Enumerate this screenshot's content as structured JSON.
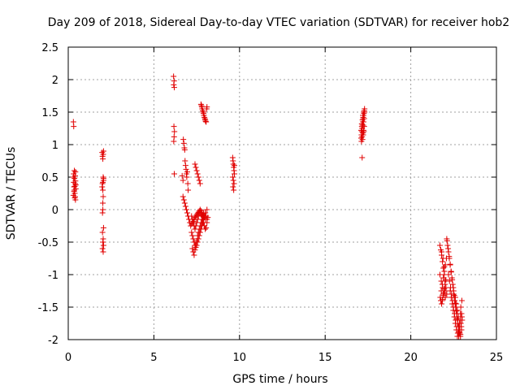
{
  "chart_data": {
    "type": "scatter",
    "title": "Day 209 of 2018, Sidereal Day-to-day VTEC variation (SDTVAR) for receiver hob2",
    "xlabel": "GPS time / hours",
    "ylabel": "SDTVAR / TECUs",
    "xlim": [
      0,
      25
    ],
    "ylim": [
      -2,
      2.5
    ],
    "xticks": [
      0,
      5,
      10,
      15,
      20,
      25
    ],
    "xtick_labels": [
      "0",
      "5",
      "10",
      "15",
      "20",
      "25"
    ],
    "yticks": [
      -2,
      -1.5,
      -1,
      -0.5,
      0,
      0.5,
      1,
      1.5,
      2,
      2.5
    ],
    "ytick_labels": [
      "-2",
      "-1.5",
      "-1",
      "-0.5",
      "0",
      "0.5",
      "1",
      "1.5",
      "2",
      "2.5"
    ],
    "grid": true,
    "marker": "+",
    "color": "#e00000",
    "series": [
      {
        "name": "SDTVAR",
        "x": [
          0.3,
          0.32,
          0.3,
          0.32,
          0.34,
          0.36,
          0.38,
          0.4,
          0.42,
          0.32,
          0.36,
          0.4,
          0.44,
          0.3,
          0.34,
          0.38,
          0.42,
          0.36,
          0.4,
          0.44,
          0.38,
          0.42,
          1.98,
          2.0,
          2.02,
          2.04,
          2.06,
          2.0,
          2.02,
          2.04,
          1.98,
          2.02,
          2.06,
          2.0,
          2.04,
          2.02,
          2.06,
          2.0,
          2.04,
          2.02,
          2.06,
          2.0,
          2.04,
          2.02,
          2.06,
          6.15,
          6.18,
          6.16,
          6.19,
          6.17,
          6.2,
          6.18,
          6.16,
          6.19,
          6.65,
          6.7,
          6.72,
          6.75,
          6.78,
          6.8,
          6.82,
          6.85,
          6.88,
          6.9,
          6.92,
          6.95,
          6.98,
          7.0,
          6.7,
          6.75,
          6.8,
          6.85,
          6.9,
          6.95,
          7.0,
          7.05,
          7.1,
          7.15,
          7.2,
          7.25,
          7.3,
          7.35,
          7.4,
          7.45,
          7.5,
          7.55,
          7.6,
          7.65,
          7.7,
          7.75,
          7.8,
          7.85,
          7.9,
          7.95,
          8.0,
          8.05,
          8.1,
          7.2,
          7.25,
          7.3,
          7.35,
          7.4,
          7.45,
          7.5,
          7.55,
          7.6,
          7.65,
          7.7,
          7.75,
          7.8,
          7.85,
          7.9,
          7.95,
          8.0,
          8.05,
          8.1,
          8.15,
          7.25,
          7.3,
          7.35,
          7.4,
          7.45,
          7.5,
          7.55,
          7.6,
          7.65,
          7.7,
          7.75,
          7.8,
          7.85,
          7.9,
          8.0,
          8.1,
          7.2,
          7.25,
          7.3,
          7.35,
          7.4,
          7.45,
          7.5,
          7.55,
          7.6,
          7.65,
          7.7,
          7.75,
          7.8,
          7.85,
          7.9,
          7.95,
          8.0,
          7.4,
          7.45,
          7.5,
          7.55,
          7.6,
          7.65,
          7.7,
          7.75,
          7.78,
          7.8,
          7.82,
          7.85,
          7.88,
          7.9,
          7.92,
          7.95,
          7.98,
          8.0,
          8.02,
          8.05,
          8.08,
          8.1,
          9.6,
          9.62,
          9.64,
          9.66,
          9.68,
          9.7,
          9.6,
          9.64,
          9.68,
          9.62,
          9.66,
          9.7,
          17.1,
          17.12,
          17.14,
          17.16,
          17.18,
          17.2,
          17.22,
          17.24,
          17.26,
          17.28,
          17.3,
          17.12,
          17.16,
          17.2,
          17.24,
          17.28,
          17.14,
          17.18,
          17.22,
          17.26,
          17.3,
          17.1,
          17.14,
          17.18,
          17.22,
          17.26,
          17.2,
          17.24,
          17.28,
          17.16,
          17.22,
          21.7,
          21.75,
          21.8,
          21.85,
          21.9,
          21.95,
          22.0,
          22.05,
          22.1,
          21.72,
          21.78,
          21.84,
          21.9,
          21.96,
          22.02,
          22.08,
          21.75,
          21.8,
          21.85,
          21.9,
          21.95,
          22.0,
          22.05,
          21.7,
          21.78,
          21.86,
          21.94,
          22.02,
          21.8,
          21.88,
          21.96,
          21.84,
          21.92,
          22.0,
          22.1,
          22.15,
          22.2,
          22.25,
          22.3,
          22.35,
          22.4,
          22.45,
          22.5,
          22.55,
          22.6,
          22.65,
          22.7,
          22.75,
          22.8,
          22.85,
          22.9,
          22.95,
          23.0,
          22.12,
          22.18,
          22.24,
          22.3,
          22.36,
          22.42,
          22.48,
          22.54,
          22.6,
          22.66,
          22.72,
          22.78,
          22.84,
          22.9,
          22.96,
          22.2,
          22.26,
          22.32,
          22.38,
          22.44,
          22.5,
          22.56,
          22.62,
          22.68,
          22.74,
          22.8,
          22.86,
          22.92,
          22.98,
          22.3,
          22.36,
          22.42,
          22.48,
          22.54,
          22.6,
          22.66,
          22.72,
          22.78,
          22.84,
          22.9,
          22.96,
          22.5,
          22.56,
          22.62,
          22.68,
          22.74,
          22.8,
          22.86,
          22.92,
          22.98,
          22.6,
          22.66,
          22.72,
          22.78,
          22.84,
          22.9
        ],
        "y": [
          1.35,
          1.28,
          0.5,
          0.42,
          0.35,
          0.3,
          0.25,
          0.2,
          0.15,
          0.55,
          0.48,
          0.4,
          0.32,
          0.22,
          0.28,
          0.36,
          0.44,
          0.6,
          0.52,
          0.38,
          0.18,
          0.58,
          0.88,
          0.82,
          0.78,
          0.5,
          0.45,
          0.4,
          0.3,
          0.2,
          0.35,
          0.1,
          0.48,
          -0.05,
          0.85,
          0.0,
          -0.28,
          -0.35,
          -0.45,
          -0.5,
          -0.55,
          -0.6,
          -0.65,
          0.42,
          0.9,
          2.05,
          1.98,
          1.92,
          1.88,
          1.28,
          1.2,
          1.12,
          1.05,
          0.55,
          0.52,
          0.45,
          1.08,
          1.02,
          0.95,
          0.92,
          0.75,
          0.68,
          0.62,
          0.55,
          0.5,
          0.58,
          0.4,
          0.3,
          0.2,
          0.15,
          0.1,
          0.05,
          0.0,
          -0.05,
          -0.1,
          -0.15,
          -0.2,
          -0.25,
          -0.22,
          -0.2,
          -0.18,
          -0.15,
          -0.12,
          -0.1,
          -0.08,
          -0.06,
          -0.04,
          -0.02,
          -0.05,
          -0.08,
          -0.1,
          -0.15,
          -0.2,
          -0.25,
          -0.3,
          -0.28,
          -0.2,
          -0.35,
          -0.4,
          -0.45,
          -0.5,
          -0.55,
          -0.58,
          -0.55,
          -0.5,
          -0.45,
          -0.4,
          -0.35,
          -0.3,
          -0.25,
          -0.2,
          -0.15,
          -0.1,
          -0.05,
          -0.1,
          -0.15,
          -0.12,
          -0.6,
          -0.65,
          -0.7,
          -0.62,
          -0.55,
          -0.48,
          -0.4,
          -0.35,
          -0.3,
          -0.25,
          -0.2,
          -0.15,
          -0.1,
          -0.05,
          -0.05,
          0.0,
          -0.1,
          -0.15,
          -0.2,
          -0.25,
          -0.3,
          -0.25,
          -0.2,
          -0.15,
          -0.1,
          -0.05,
          0.0,
          -0.02,
          -0.05,
          -0.08,
          -0.1,
          -0.12,
          -0.15,
          0.7,
          0.65,
          0.6,
          0.55,
          0.5,
          0.45,
          0.4,
          1.62,
          1.6,
          1.58,
          1.55,
          1.52,
          1.5,
          1.48,
          1.45,
          1.42,
          1.4,
          1.38,
          1.36,
          1.35,
          1.55,
          1.58,
          0.8,
          0.75,
          0.7,
          0.65,
          0.6,
          0.55,
          0.5,
          0.45,
          0.4,
          0.35,
          0.3,
          0.68,
          1.1,
          1.15,
          1.2,
          1.25,
          1.3,
          1.35,
          1.4,
          1.45,
          1.5,
          1.52,
          1.55,
          1.05,
          1.12,
          1.18,
          1.22,
          1.28,
          1.32,
          1.38,
          1.42,
          1.48,
          1.5,
          1.22,
          1.28,
          1.08,
          1.15,
          1.2,
          1.45,
          1.35,
          1.4,
          0.8,
          1.3,
          -0.55,
          -0.62,
          -0.7,
          -0.8,
          -0.9,
          -1.0,
          -1.1,
          -1.2,
          -1.3,
          -1.35,
          -1.25,
          -1.15,
          -1.05,
          -0.95,
          -0.85,
          -0.75,
          -1.4,
          -1.45,
          -1.38,
          -1.3,
          -1.22,
          -1.15,
          -1.08,
          -1.0,
          -1.1,
          -1.2,
          -1.28,
          -1.35,
          -0.65,
          -0.75,
          -0.88,
          -1.4,
          -1.32,
          -1.25,
          -0.45,
          -0.55,
          -0.65,
          -0.75,
          -0.85,
          -0.95,
          -1.05,
          -1.15,
          -1.25,
          -1.35,
          -1.45,
          -1.55,
          -1.65,
          -1.75,
          -1.85,
          -1.9,
          -1.95,
          -1.8,
          -1.7,
          -0.48,
          -0.6,
          -0.72,
          -0.84,
          -0.96,
          -1.08,
          -1.2,
          -1.32,
          -1.44,
          -1.56,
          -1.68,
          -1.8,
          -1.88,
          -1.92,
          -1.85,
          -1.0,
          -1.1,
          -1.2,
          -1.3,
          -1.4,
          -1.5,
          -1.6,
          -1.7,
          -1.8,
          -1.9,
          -1.95,
          -1.85,
          -1.75,
          -1.65,
          -1.25,
          -1.35,
          -1.45,
          -1.55,
          -1.65,
          -1.75,
          -1.85,
          -1.95,
          -1.9,
          -1.8,
          -1.7,
          -1.6,
          -1.3,
          -1.4,
          -1.5,
          -1.6,
          -1.7,
          -1.8,
          -1.9,
          -1.5,
          -1.4,
          -1.35,
          -1.45,
          -1.55,
          -1.65,
          -1.75,
          -1.6
        ]
      }
    ]
  }
}
